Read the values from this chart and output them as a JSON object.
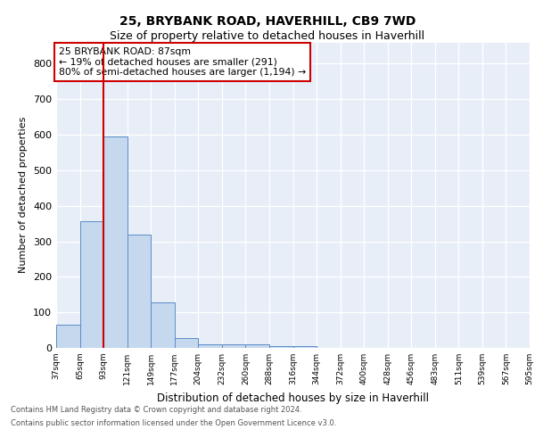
{
  "title": "25, BRYBANK ROAD, HAVERHILL, CB9 7WD",
  "subtitle": "Size of property relative to detached houses in Haverhill",
  "xlabel": "Distribution of detached houses by size in Haverhill",
  "ylabel": "Number of detached properties",
  "bin_labels": [
    "37sqm",
    "65sqm",
    "93sqm",
    "121sqm",
    "149sqm",
    "177sqm",
    "204sqm",
    "232sqm",
    "260sqm",
    "288sqm",
    "316sqm",
    "344sqm",
    "372sqm",
    "400sqm",
    "428sqm",
    "456sqm",
    "483sqm",
    "511sqm",
    "539sqm",
    "567sqm",
    "595sqm"
  ],
  "bar_heights": [
    65,
    357,
    596,
    318,
    128,
    27,
    10,
    10,
    10,
    5,
    5,
    0,
    0,
    0,
    0,
    0,
    0,
    0,
    0,
    0
  ],
  "bar_color": "#c5d8ed",
  "bar_edge_color": "#5b8dc8",
  "vline_color": "#cc0000",
  "ylim": [
    0,
    860
  ],
  "yticks": [
    0,
    100,
    200,
    300,
    400,
    500,
    600,
    700,
    800
  ],
  "annotation_title": "25 BRYBANK ROAD: 87sqm",
  "annotation_line1": "← 19% of detached houses are smaller (291)",
  "annotation_line2": "80% of semi-detached houses are larger (1,194) →",
  "footer_line1": "Contains HM Land Registry data © Crown copyright and database right 2024.",
  "footer_line2": "Contains public sector information licensed under the Open Government Licence v3.0.",
  "plot_background": "#e8eef8",
  "grid_color": "#ffffff",
  "title_fontsize": 10,
  "subtitle_fontsize": 9
}
